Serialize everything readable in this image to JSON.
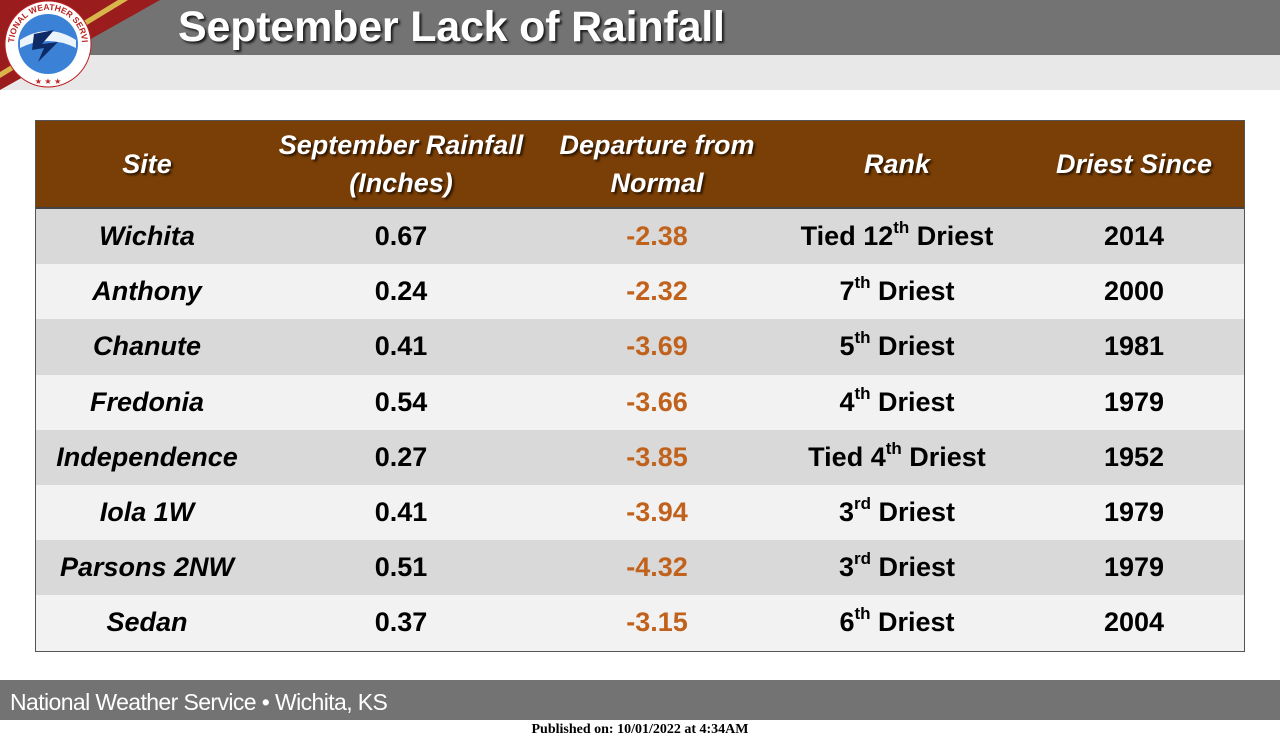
{
  "header": {
    "title": "September Lack of Rainfall",
    "logo_text": "NATIONAL WEATHER SERVICE"
  },
  "table": {
    "headers": {
      "site": "Site",
      "rain_line1": "September Rainfall",
      "rain_line2": "(Inches)",
      "dep_line1": "Departure from",
      "dep_line2": "Normal",
      "rank": "Rank",
      "since": "Driest Since"
    },
    "rows": [
      {
        "site": "Wichita",
        "rain": "0.67",
        "departure": "-2.38",
        "rank_pre": "Tied 12",
        "rank_sup": "th",
        "rank_post": " Driest",
        "since": "2014"
      },
      {
        "site": "Anthony",
        "rain": "0.24",
        "departure": "-2.32",
        "rank_pre": "7",
        "rank_sup": "th",
        "rank_post": " Driest",
        "since": "2000"
      },
      {
        "site": "Chanute",
        "rain": "0.41",
        "departure": "-3.69",
        "rank_pre": "5",
        "rank_sup": "th",
        "rank_post": " Driest",
        "since": "1981"
      },
      {
        "site": "Fredonia",
        "rain": "0.54",
        "departure": "-3.66",
        "rank_pre": "4",
        "rank_sup": "th",
        "rank_post": " Driest",
        "since": "1979"
      },
      {
        "site": "Independence",
        "rain": "0.27",
        "departure": "-3.85",
        "rank_pre": "Tied 4",
        "rank_sup": "th",
        "rank_post": " Driest",
        "since": "1952"
      },
      {
        "site": "Iola 1W",
        "rain": "0.41",
        "departure": "-3.94",
        "rank_pre": "3",
        "rank_sup": "rd",
        "rank_post": " Driest",
        "since": "1979"
      },
      {
        "site": "Parsons 2NW",
        "rain": "0.51",
        "departure": "-4.32",
        "rank_pre": "3",
        "rank_sup": "rd",
        "rank_post": " Driest",
        "since": "1979"
      },
      {
        "site": "Sedan",
        "rain": "0.37",
        "departure": "-3.15",
        "rank_pre": "6",
        "rank_sup": "th",
        "rank_post": " Driest",
        "since": "2004"
      }
    ]
  },
  "footer": {
    "office": "National Weather Service • Wichita, KS",
    "published": "Published on: 10/01/2022 at 4:34AM"
  },
  "colors": {
    "header_gray": "#737373",
    "table_header_brown": "#7a3f06",
    "departure_orange": "#c0621c",
    "row_dark": "#d9d9d9",
    "row_light": "#f2f2f2"
  }
}
